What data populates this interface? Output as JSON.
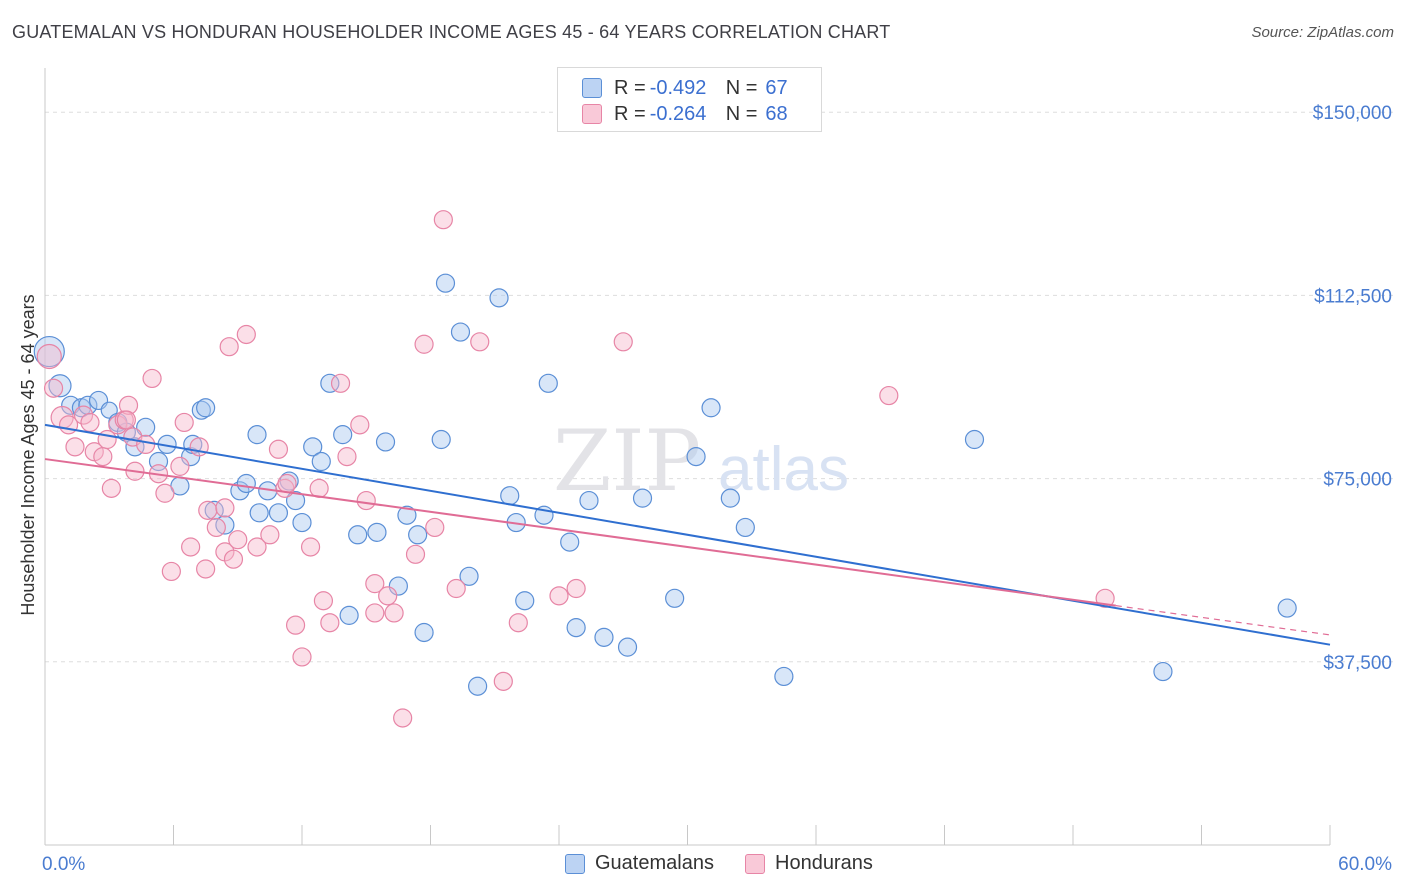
{
  "title": "GUATEMALAN VS HONDURAN HOUSEHOLDER INCOME AGES 45 - 64 YEARS CORRELATION CHART",
  "source": "Source: ZipAtlas.com",
  "watermark": {
    "zip": "ZIP",
    "atlas": "atlas"
  },
  "legend": {
    "rows": [
      {
        "r_label": "R =",
        "r_value": "-0.492",
        "n_label": "N =",
        "n_value": "67"
      },
      {
        "r_label": "R =",
        "r_value": "-0.264",
        "n_label": "N =",
        "n_value": "68"
      }
    ]
  },
  "bottom_legend": [
    "Guatemalans",
    "Hondurans"
  ],
  "chart_data": {
    "type": "scatter",
    "title": "GUATEMALAN VS HONDURAN HOUSEHOLDER INCOME AGES 45 - 64 YEARS CORRELATION CHART",
    "xlabel": "",
    "ylabel": "Householder Income Ages 45 - 64 years",
    "xlim": [
      0,
      60
    ],
    "ylim": [
      0,
      157000
    ],
    "x_tick_labels": [
      "0.0%",
      "60.0%"
    ],
    "y_ticks": [
      37500,
      75000,
      112500,
      150000
    ],
    "y_tick_labels": [
      "$37,500",
      "$75,000",
      "$112,500",
      "$150,000"
    ],
    "grid": true,
    "legend_position": "top-center",
    "colors": {
      "guatemalans_fill": "#a9c8f0",
      "guatemalans_stroke": "#5b8fd6",
      "guatemalans_line": "#2f6fd0",
      "hondurans_fill": "#f6b7cb",
      "hondurans_stroke": "#e785a6",
      "hondurans_line": "#e06c95",
      "tick_text": "#4a7cd0",
      "grid": "#dddddd"
    },
    "series": [
      {
        "name": "Guatemalans",
        "r": -0.492,
        "n": 67,
        "trend": {
          "x": [
            0,
            60
          ],
          "y": [
            86000,
            41000
          ],
          "dashed_from": null
        },
        "points": [
          [
            0.2,
            101000,
            15
          ],
          [
            0.7,
            94000,
            11
          ],
          [
            1.2,
            90000,
            9
          ],
          [
            1.7,
            89500,
            9
          ],
          [
            2.0,
            90000,
            9
          ],
          [
            2.5,
            91000,
            9
          ],
          [
            3.0,
            89000,
            8
          ],
          [
            3.4,
            86500,
            9
          ],
          [
            3.8,
            84500,
            9
          ],
          [
            4.2,
            81500,
            9
          ],
          [
            4.7,
            85500,
            9
          ],
          [
            5.3,
            78500,
            9
          ],
          [
            5.7,
            82000,
            9
          ],
          [
            6.3,
            73500,
            9
          ],
          [
            6.8,
            79500,
            9
          ],
          [
            7.3,
            89000,
            9
          ],
          [
            7.5,
            89500,
            9
          ],
          [
            7.9,
            68500,
            9
          ],
          [
            8.4,
            65500,
            9
          ],
          [
            9.1,
            72500,
            9
          ],
          [
            9.4,
            74000,
            9
          ],
          [
            9.9,
            84000,
            9
          ],
          [
            10.4,
            72500,
            9
          ],
          [
            10.9,
            68000,
            9
          ],
          [
            11.4,
            74500,
            9
          ],
          [
            11.7,
            70500,
            9
          ],
          [
            12.0,
            66000,
            9
          ],
          [
            12.5,
            81500,
            9
          ],
          [
            12.9,
            78500,
            9
          ],
          [
            13.3,
            94500,
            9
          ],
          [
            13.9,
            84000,
            9
          ],
          [
            14.2,
            47000,
            9
          ],
          [
            14.6,
            63500,
            9
          ],
          [
            15.5,
            64000,
            9
          ],
          [
            15.9,
            82500,
            9
          ],
          [
            16.5,
            53000,
            9
          ],
          [
            16.9,
            67500,
            9
          ],
          [
            17.4,
            63500,
            9
          ],
          [
            17.7,
            43500,
            9
          ],
          [
            18.5,
            83000,
            9
          ],
          [
            18.7,
            115000,
            9
          ],
          [
            19.4,
            105000,
            9
          ],
          [
            19.8,
            55000,
            9
          ],
          [
            20.2,
            32500,
            9
          ],
          [
            21.2,
            112000,
            9
          ],
          [
            21.7,
            71500,
            9
          ],
          [
            22.0,
            66000,
            9
          ],
          [
            22.4,
            50000,
            9
          ],
          [
            23.3,
            67500,
            9
          ],
          [
            23.5,
            94500,
            9
          ],
          [
            24.5,
            62000,
            9
          ],
          [
            24.8,
            44500,
            9
          ],
          [
            25.4,
            70500,
            9
          ],
          [
            26.1,
            42500,
            9
          ],
          [
            27.2,
            40500,
            9
          ],
          [
            27.9,
            71000,
            9
          ],
          [
            29.4,
            50500,
            9
          ],
          [
            30.4,
            79500,
            9
          ],
          [
            31.1,
            89500,
            9
          ],
          [
            32.0,
            71000,
            9
          ],
          [
            32.7,
            65000,
            9
          ],
          [
            34.5,
            34500,
            9
          ],
          [
            43.4,
            83000,
            9
          ],
          [
            52.2,
            35500,
            9
          ],
          [
            58.0,
            48500,
            9
          ],
          [
            6.9,
            82000,
            9
          ],
          [
            10.0,
            68000,
            9
          ]
        ]
      },
      {
        "name": "Hondurans",
        "r": -0.264,
        "n": 68,
        "trend": {
          "x": [
            0,
            60
          ],
          "y": [
            79000,
            43000
          ],
          "dashed_from": 50
        },
        "points": [
          [
            0.2,
            100000,
            12
          ],
          [
            0.4,
            93500,
            9
          ],
          [
            0.8,
            87500,
            11
          ],
          [
            1.1,
            86000,
            9
          ],
          [
            1.4,
            81500,
            9
          ],
          [
            1.8,
            88000,
            9
          ],
          [
            2.1,
            86500,
            9
          ],
          [
            2.3,
            80500,
            9
          ],
          [
            2.7,
            79500,
            9
          ],
          [
            2.9,
            83000,
            9
          ],
          [
            3.1,
            73000,
            9
          ],
          [
            3.4,
            86000,
            9
          ],
          [
            3.7,
            87000,
            9
          ],
          [
            3.9,
            90000,
            9
          ],
          [
            4.1,
            83500,
            9
          ],
          [
            4.2,
            76500,
            9
          ],
          [
            4.7,
            82000,
            9
          ],
          [
            5.0,
            95500,
            9
          ],
          [
            5.3,
            76000,
            9
          ],
          [
            5.6,
            72000,
            9
          ],
          [
            5.9,
            56000,
            9
          ],
          [
            6.3,
            77500,
            9
          ],
          [
            6.5,
            86500,
            9
          ],
          [
            6.8,
            61000,
            9
          ],
          [
            7.2,
            81500,
            9
          ],
          [
            7.5,
            56500,
            9
          ],
          [
            7.6,
            68500,
            9
          ],
          [
            8.0,
            65000,
            9
          ],
          [
            8.4,
            60000,
            9
          ],
          [
            8.6,
            102000,
            9
          ],
          [
            8.8,
            58500,
            9
          ],
          [
            9.0,
            62500,
            9
          ],
          [
            9.4,
            104500,
            9
          ],
          [
            9.9,
            61000,
            9
          ],
          [
            10.5,
            63500,
            9
          ],
          [
            10.9,
            81000,
            9
          ],
          [
            11.2,
            73000,
            9
          ],
          [
            11.7,
            45000,
            9
          ],
          [
            12.0,
            38500,
            9
          ],
          [
            12.4,
            61000,
            9
          ],
          [
            12.8,
            73000,
            9
          ],
          [
            13.0,
            50000,
            9
          ],
          [
            13.3,
            45500,
            9
          ],
          [
            13.8,
            94500,
            9
          ],
          [
            14.1,
            79500,
            9
          ],
          [
            14.7,
            86000,
            9
          ],
          [
            15.0,
            70500,
            9
          ],
          [
            15.4,
            53500,
            9
          ],
          [
            16.0,
            51000,
            9
          ],
          [
            16.3,
            47500,
            9
          ],
          [
            16.7,
            26000,
            9
          ],
          [
            17.3,
            59500,
            9
          ],
          [
            17.7,
            102500,
            9
          ],
          [
            18.2,
            65000,
            9
          ],
          [
            18.6,
            128000,
            9
          ],
          [
            19.2,
            52500,
            9
          ],
          [
            20.3,
            103000,
            9
          ],
          [
            21.4,
            33500,
            9
          ],
          [
            22.1,
            45500,
            9
          ],
          [
            24.0,
            51000,
            9
          ],
          [
            24.8,
            52500,
            9
          ],
          [
            27.0,
            103000,
            9
          ],
          [
            39.4,
            92000,
            9
          ],
          [
            49.5,
            50500,
            9
          ],
          [
            15.4,
            47500,
            9
          ],
          [
            8.4,
            69000,
            9
          ],
          [
            3.8,
            87000,
            9
          ],
          [
            11.3,
            74000,
            9
          ]
        ]
      }
    ]
  }
}
